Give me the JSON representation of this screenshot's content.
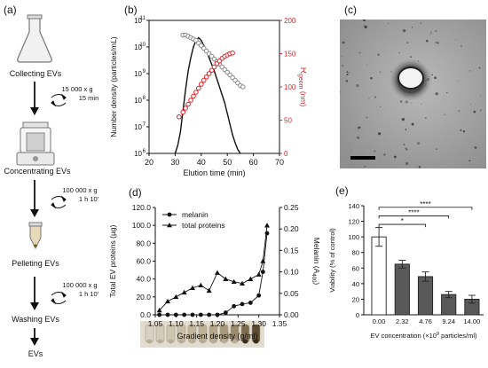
{
  "panel_labels": [
    "(a)",
    "(b)",
    "(c)",
    "(d)",
    "(e)"
  ],
  "workflow": {
    "steps": [
      {
        "label": "Collecting EVs",
        "icon": "flask-icon"
      },
      {
        "label": "Concentrating EVs",
        "icon": "concentrator-icon"
      },
      {
        "label": "Pelleting EVs",
        "icon": "tube-icon"
      },
      {
        "label": "Washing EVs",
        "icon": ""
      },
      {
        "label": "EVs",
        "icon": ""
      }
    ],
    "conditions": [
      {
        "speed": "15 000 x g",
        "time": "15 min"
      },
      {
        "speed": "100 000 x g",
        "time": "1 h 10'"
      },
      {
        "speed": "100 000 x g",
        "time": "1 h 10'"
      }
    ]
  },
  "chart_data": [
    {
      "panel": "(b)",
      "type": "line",
      "xlabel": "Elution time (min)",
      "ylabel_left": "Number density (particles/mL)",
      "ylabel_right": "R",
      "ylabel_right_sub": "geom",
      "ylabel_right_unit": " (nm)",
      "xlim": [
        20,
        70
      ],
      "ylim_left_log10": [
        6,
        11
      ],
      "ylim_right": [
        0,
        200
      ],
      "xticks": [
        "20",
        "30",
        "40",
        "50",
        "60",
        "70"
      ],
      "yticks_left": [
        "10",
        "10",
        "10",
        "10",
        "10",
        "10"
      ],
      "yticks_left_exp": [
        "6",
        "7",
        "8",
        "9",
        "10",
        "11"
      ],
      "yticks_right": [
        "0",
        "50",
        "100",
        "150",
        "200"
      ],
      "colors": {
        "density": "#111111",
        "radius": "#e0262b",
        "gray": "#8a8a8a"
      },
      "series": [
        {
          "axis": "left-log",
          "style": "line",
          "x": [
            30,
            31,
            32,
            33,
            34,
            35,
            36,
            37,
            38,
            39,
            40,
            41,
            42,
            43,
            44,
            45,
            46,
            47,
            48,
            49,
            50,
            51,
            52,
            53,
            54,
            55
          ],
          "log10_y": [
            6.0,
            6.3,
            6.8,
            7.6,
            8.4,
            9.1,
            9.6,
            10.0,
            10.25,
            10.35,
            10.25,
            10.05,
            9.85,
            9.6,
            9.35,
            9.1,
            8.8,
            8.5,
            8.2,
            7.9,
            7.5,
            7.1,
            6.7,
            6.4,
            6.15,
            6.0
          ]
        },
        {
          "axis": "left-log",
          "style": "gray-circles",
          "x": [
            33,
            34,
            35,
            36,
            37,
            38,
            39,
            40,
            41,
            42,
            43,
            44,
            45,
            46,
            47,
            48,
            49,
            50,
            51,
            52,
            53,
            54,
            55,
            56
          ],
          "log10_y": [
            10.45,
            10.45,
            10.4,
            10.35,
            10.3,
            10.25,
            10.15,
            10.05,
            9.95,
            9.85,
            9.75,
            9.65,
            9.55,
            9.45,
            9.35,
            9.25,
            9.15,
            9.05,
            8.95,
            8.85,
            8.75,
            8.65,
            8.55,
            8.5
          ]
        },
        {
          "axis": "right",
          "style": "red-circles",
          "x": [
            31.5,
            33,
            34,
            35,
            36,
            37,
            38,
            39,
            40,
            41,
            42,
            43,
            44,
            45,
            46,
            47,
            48,
            49,
            50,
            51,
            52
          ],
          "y": [
            55,
            62,
            68,
            74,
            80,
            86,
            92,
            98,
            104,
            110,
            115,
            120,
            125,
            130,
            135,
            139,
            143,
            146,
            148,
            150,
            151
          ]
        }
      ]
    },
    {
      "panel": "(d)",
      "type": "line",
      "xlabel": "Gradient density (g/ml)",
      "ylabel_left": "Total EV proteins (µg)",
      "ylabel_right": "Melanin (A",
      "ylabel_right_sub": "400",
      "ylabel_right_unit": ")",
      "xlim": [
        1.05,
        1.35
      ],
      "ylim_left": [
        0,
        120
      ],
      "ylim_right": [
        0,
        0.25
      ],
      "xticks": [
        "1.05",
        "1.10",
        "1.15",
        "1.20",
        "1.25",
        "1.30",
        "1.35"
      ],
      "yticks_left": [
        "0.0",
        "20.0",
        "40.0",
        "60.0",
        "80.0",
        "100.0",
        "120.0"
      ],
      "yticks_right": [
        "0.00",
        "0.05",
        "0.10",
        "0.15",
        "0.20",
        "0.25"
      ],
      "legend": [
        "melanin",
        "total proteins"
      ],
      "legend_position": "top-left",
      "series": [
        {
          "name": "melanin",
          "axis": "right",
          "marker": "circle",
          "x": [
            1.06,
            1.08,
            1.1,
            1.12,
            1.14,
            1.16,
            1.18,
            1.2,
            1.22,
            1.24,
            1.26,
            1.28,
            1.3,
            1.31,
            1.32
          ],
          "y": [
            0.0,
            0.0,
            0.0,
            0.0,
            0.0,
            0.0,
            0.0,
            0.0,
            0.005,
            0.02,
            0.025,
            0.028,
            0.045,
            0.1,
            0.19
          ]
        },
        {
          "name": "total proteins",
          "axis": "left",
          "marker": "triangle",
          "x": [
            1.06,
            1.08,
            1.1,
            1.12,
            1.14,
            1.16,
            1.18,
            1.2,
            1.22,
            1.24,
            1.26,
            1.28,
            1.3,
            1.31,
            1.32
          ],
          "y": [
            5,
            15,
            20,
            25,
            30,
            33,
            27,
            47,
            40,
            37,
            35,
            40,
            45,
            60,
            100
          ]
        }
      ]
    },
    {
      "panel": "(e)",
      "type": "bar",
      "xlabel": "EV concentration (×10",
      "xlabel_sup": "9",
      "xlabel_unit": " particles/ml)",
      "ylabel": "Viability (% of control)",
      "ylim": [
        0,
        140
      ],
      "yticks": [
        "0",
        "20",
        "40",
        "60",
        "80",
        "100",
        "120",
        "140"
      ],
      "categories": [
        "0.00",
        "2.32",
        "4.76",
        "9.24",
        "14.00"
      ],
      "values": [
        100,
        65,
        49,
        26,
        20
      ],
      "errors": [
        12,
        5,
        6,
        4,
        5
      ],
      "bar_colors": [
        "#ffffff",
        "#595959",
        "#595959",
        "#595959",
        "#595959"
      ],
      "significance": [
        {
          "from": 0,
          "to": 2,
          "label": "*"
        },
        {
          "from": 0,
          "to": 3,
          "label": "****"
        },
        {
          "from": 0,
          "to": 4,
          "label": "****"
        }
      ]
    }
  ]
}
